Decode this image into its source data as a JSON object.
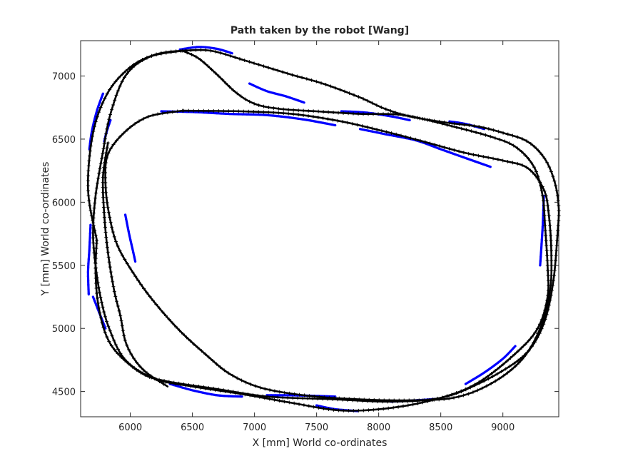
{
  "chart_data": {
    "type": "line",
    "title": "Path taken by the robot [Wang]",
    "xlabel": "X [mm] World co-ordinates",
    "ylabel": "Y [mm] World co-ordinates",
    "xlim": [
      5600,
      9450
    ],
    "ylim": [
      4300,
      7280
    ],
    "xticks": [
      6000,
      6500,
      7000,
      7500,
      8000,
      8500,
      9000
    ],
    "yticks": [
      4500,
      5000,
      5500,
      6000,
      6500,
      7000
    ],
    "grid": false,
    "series": [
      {
        "role": "estimated-path",
        "color": "#0000ff",
        "marker": "dot",
        "segments": [
          [
            [
              6400,
              7210
            ],
            [
              6550,
              7230
            ],
            [
              6700,
              7215
            ],
            [
              6820,
              7180
            ]
          ],
          [
            [
              6960,
              6940
            ],
            [
              7100,
              6880
            ],
            [
              7250,
              6840
            ],
            [
              7400,
              6790
            ]
          ],
          [
            [
              5780,
              6860
            ],
            [
              5730,
              6720
            ],
            [
              5690,
              6560
            ],
            [
              5670,
              6420
            ]
          ],
          [
            [
              5840,
              6650
            ],
            [
              5810,
              6560
            ],
            [
              5790,
              6480
            ]
          ],
          [
            [
              6250,
              6720
            ],
            [
              6500,
              6715
            ],
            [
              6800,
              6700
            ],
            [
              7100,
              6690
            ],
            [
              7400,
              6655
            ],
            [
              7650,
              6610
            ]
          ],
          [
            [
              7700,
              6720
            ],
            [
              7900,
              6710
            ],
            [
              8100,
              6680
            ],
            [
              8250,
              6650
            ]
          ],
          [
            [
              7850,
              6580
            ],
            [
              8050,
              6540
            ],
            [
              8300,
              6490
            ],
            [
              8500,
              6420
            ],
            [
              8700,
              6350
            ],
            [
              8900,
              6280
            ]
          ],
          [
            [
              8570,
              6640
            ],
            [
              8700,
              6620
            ],
            [
              8850,
              6580
            ]
          ],
          [
            [
              5680,
              5820
            ],
            [
              5670,
              5620
            ],
            [
              5660,
              5450
            ],
            [
              5665,
              5270
            ]
          ],
          [
            [
              5960,
              5900
            ],
            [
              5990,
              5750
            ],
            [
              6020,
              5620
            ],
            [
              6040,
              5530
            ]
          ],
          [
            [
              5700,
              5250
            ],
            [
              5760,
              5100
            ],
            [
              5800,
              5000
            ]
          ],
          [
            [
              6320,
              4560
            ],
            [
              6500,
              4510
            ],
            [
              6700,
              4470
            ],
            [
              6900,
              4460
            ]
          ],
          [
            [
              7100,
              4470
            ],
            [
              7300,
              4470
            ],
            [
              7500,
              4465
            ],
            [
              7650,
              4460
            ]
          ],
          [
            [
              7500,
              4390
            ],
            [
              7650,
              4360
            ],
            [
              7830,
              4345
            ]
          ],
          [
            [
              8100,
              4420
            ],
            [
              8300,
              4430
            ],
            [
              8450,
              4440
            ]
          ],
          [
            [
              8700,
              4560
            ],
            [
              8850,
              4650
            ],
            [
              9000,
              4760
            ],
            [
              9100,
              4860
            ]
          ],
          [
            [
              9300,
              5500
            ],
            [
              9320,
              5800
            ],
            [
              9330,
              6050
            ]
          ]
        ]
      },
      {
        "role": "reference-path",
        "color": "#000000",
        "marker": "plus",
        "segments": [
          [
            [
              5730,
              5700
            ],
            [
              5660,
              6100
            ],
            [
              5700,
              6550
            ],
            [
              5820,
              6870
            ],
            [
              6000,
              7070
            ],
            [
              6200,
              7170
            ],
            [
              6420,
              7200
            ],
            [
              6650,
              7200
            ],
            [
              6900,
              7130
            ],
            [
              7100,
              7070
            ],
            [
              7300,
              7010
            ],
            [
              7550,
              6940
            ],
            [
              7850,
              6830
            ],
            [
              8050,
              6740
            ],
            [
              8250,
              6680
            ],
            [
              8550,
              6630
            ],
            [
              8800,
              6600
            ],
            [
              9000,
              6550
            ],
            [
              9200,
              6480
            ],
            [
              9340,
              6340
            ],
            [
              9420,
              6150
            ],
            [
              9450,
              5950
            ],
            [
              9440,
              5750
            ],
            [
              9410,
              5400
            ],
            [
              9350,
              5100
            ],
            [
              9250,
              4880
            ],
            [
              9100,
              4730
            ],
            [
              8800,
              4560
            ],
            [
              8500,
              4450
            ],
            [
              8100,
              4420
            ],
            [
              7600,
              4440
            ],
            [
              7100,
              4460
            ],
            [
              6700,
              4520
            ],
            [
              6300,
              4580
            ],
            [
              6100,
              4640
            ],
            [
              5900,
              4800
            ],
            [
              5800,
              4960
            ],
            [
              5740,
              5200
            ],
            [
              5720,
              5450
            ],
            [
              5730,
              5700
            ]
          ],
          [
            [
              6420,
              7200
            ],
            [
              6550,
              7140
            ],
            [
              6700,
              7010
            ],
            [
              6850,
              6870
            ],
            [
              7000,
              6780
            ],
            [
              7200,
              6740
            ],
            [
              7500,
              6720
            ],
            [
              7850,
              6700
            ],
            [
              8200,
              6690
            ],
            [
              8600,
              6600
            ],
            [
              8900,
              6520
            ],
            [
              9100,
              6440
            ],
            [
              9250,
              6280
            ],
            [
              9320,
              6050
            ],
            [
              9340,
              5800
            ],
            [
              9360,
              5500
            ],
            [
              9360,
              5250
            ],
            [
              9280,
              5000
            ],
            [
              9100,
              4800
            ],
            [
              8800,
              4570
            ],
            [
              8500,
              4450
            ],
            [
              8100,
              4370
            ],
            [
              7700,
              4350
            ],
            [
              7300,
              4410
            ],
            [
              6900,
              4480
            ],
            [
              6500,
              4540
            ],
            [
              6200,
              4600
            ],
            [
              5960,
              4750
            ],
            [
              5830,
              5000
            ],
            [
              5760,
              5250
            ],
            [
              5720,
              5500
            ],
            [
              5700,
              5750
            ],
            [
              5720,
              6050
            ],
            [
              5780,
              6400
            ],
            [
              5840,
              6700
            ],
            [
              5960,
              7000
            ],
            [
              6150,
              7150
            ],
            [
              6420,
              7200
            ]
          ],
          [
            [
              6420,
              6725
            ],
            [
              6150,
              6680
            ],
            [
              5960,
              6560
            ],
            [
              5820,
              6380
            ],
            [
              5800,
              6150
            ],
            [
              5830,
              5900
            ],
            [
              5900,
              5650
            ],
            [
              6050,
              5400
            ],
            [
              6200,
              5200
            ],
            [
              6400,
              4980
            ],
            [
              6600,
              4800
            ],
            [
              6800,
              4640
            ],
            [
              7050,
              4530
            ],
            [
              7400,
              4470
            ],
            [
              7800,
              4440
            ],
            [
              8200,
              4430
            ],
            [
              8600,
              4450
            ],
            [
              8900,
              4560
            ],
            [
              9150,
              4750
            ],
            [
              9300,
              5000
            ],
            [
              9380,
              5300
            ],
            [
              9390,
              5600
            ],
            [
              9370,
              5900
            ],
            [
              9330,
              6100
            ],
            [
              9200,
              6270
            ],
            [
              9000,
              6330
            ],
            [
              8700,
              6390
            ],
            [
              8400,
              6470
            ],
            [
              8050,
              6560
            ],
            [
              7700,
              6640
            ],
            [
              7300,
              6700
            ],
            [
              6900,
              6720
            ],
            [
              6420,
              6725
            ]
          ],
          [
            [
              5820,
              6470
            ],
            [
              5780,
              6200
            ],
            [
              5790,
              5900
            ],
            [
              5820,
              5600
            ],
            [
              5870,
              5300
            ],
            [
              5920,
              5100
            ],
            [
              5960,
              4900
            ],
            [
              6030,
              4760
            ],
            [
              6130,
              4650
            ],
            [
              6300,
              4540
            ]
          ]
        ]
      }
    ]
  }
}
